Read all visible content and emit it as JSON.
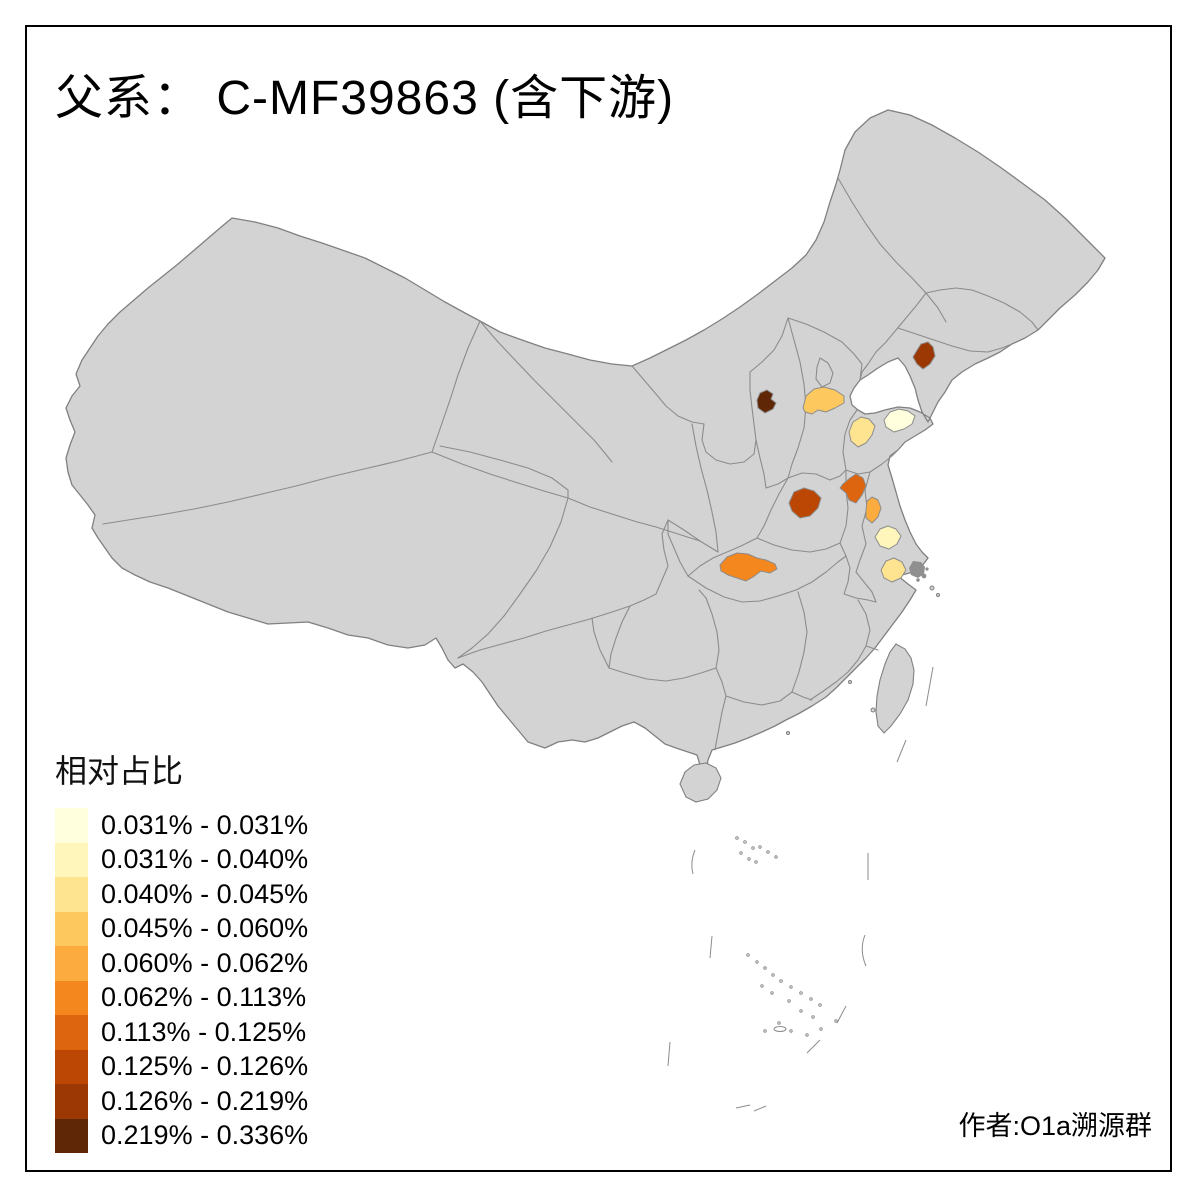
{
  "title": "父系： C-MF39863 (含下游)",
  "attribution": "作者:O1a溯源群",
  "frame": {
    "background": "#FFFFFF",
    "border_color": "#000000"
  },
  "legend": {
    "title": "相对占比",
    "classes": [
      {
        "label": "0.031% - 0.031%",
        "color": "#FFFFDE"
      },
      {
        "label": "0.031% - 0.040%",
        "color": "#FFF6BC"
      },
      {
        "label": "0.040% - 0.045%",
        "color": "#FEE391"
      },
      {
        "label": "0.045% - 0.060%",
        "color": "#FDC95F"
      },
      {
        "label": "0.060% - 0.062%",
        "color": "#FCAB3E"
      },
      {
        "label": "0.062% - 0.113%",
        "color": "#F5871F"
      },
      {
        "label": "0.113% - 0.125%",
        "color": "#DE6510"
      },
      {
        "label": "0.125% - 0.126%",
        "color": "#BC4604"
      },
      {
        "label": "0.126% - 0.219%",
        "color": "#9B3803"
      },
      {
        "label": "0.219% - 0.336%",
        "color": "#5F2706"
      }
    ]
  },
  "map": {
    "base_fill": "#D3D3D3",
    "outline_color": "#808080",
    "boundary_color": "#8C8C8C",
    "sea_color": "#FFFFFF",
    "island_cluster_color": "#8F8F8F",
    "regions": [
      {
        "id": "liaoning-west",
        "range": "0.126% - 0.219%",
        "color": "#9B3803"
      },
      {
        "id": "shanxi-east",
        "range": "0.219% - 0.336%",
        "color": "#5F2706"
      },
      {
        "id": "hebei-central",
        "range": "0.045% - 0.060%",
        "color": "#FDC95F"
      },
      {
        "id": "shandong-peninsula",
        "range": "0.031% - 0.031%",
        "color": "#FFFFDE"
      },
      {
        "id": "shandong-central",
        "range": "0.040% - 0.045%",
        "color": "#FEE391"
      },
      {
        "id": "jiangsu-north",
        "range": "0.113% - 0.125%",
        "color": "#DE6510"
      },
      {
        "id": "henan-central",
        "range": "0.125% - 0.126%",
        "color": "#BC4604"
      },
      {
        "id": "jiangsu-central",
        "range": "0.060% - 0.062%",
        "color": "#FCAB3E"
      },
      {
        "id": "jiangsu-south",
        "range": "0.031% - 0.040%",
        "color": "#FFF6BC"
      },
      {
        "id": "zhejiang-north",
        "range": "0.040% - 0.045%",
        "color": "#FEE391"
      },
      {
        "id": "hubei-central",
        "range": "0.062% - 0.113%",
        "color": "#F5871F"
      }
    ]
  }
}
